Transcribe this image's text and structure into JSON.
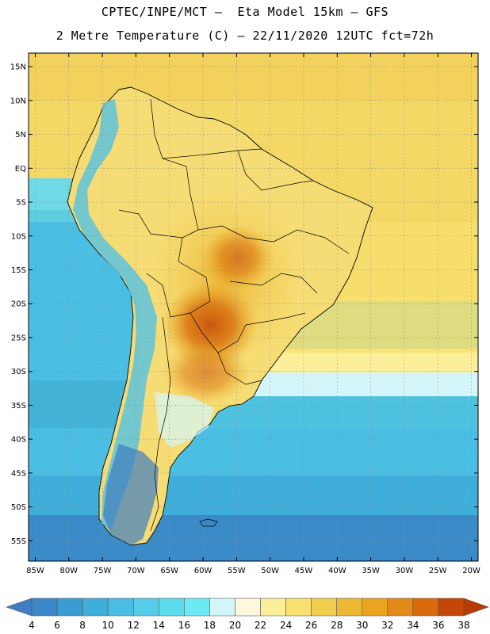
{
  "header": {
    "line1": "CPTEC/INPE/MCT –  Eta Model 15km – GFS",
    "line2": "2 Metre Temperature (C) – 22/11/2020 12UTC fct=72h"
  },
  "map": {
    "lon_range": [
      -86,
      -19
    ],
    "lat_range": [
      -58,
      17
    ],
    "lat_labels": [
      "15N",
      "10N",
      "5N",
      "EQ",
      "5S",
      "10S",
      "15S",
      "20S",
      "25S",
      "30S",
      "35S",
      "40S",
      "45S",
      "50S",
      "55S"
    ],
    "lon_labels": [
      "85W",
      "80W",
      "75W",
      "70W",
      "65W",
      "60W",
      "55W",
      "50W",
      "45W",
      "40W",
      "35W",
      "30W",
      "25W",
      "20W"
    ]
  },
  "colorbar": {
    "labels": [
      "4",
      "6",
      "8",
      "10",
      "12",
      "14",
      "16",
      "18",
      "20",
      "22",
      "24",
      "26",
      "28",
      "30",
      "32",
      "34",
      "36",
      "38"
    ],
    "colors": [
      "#3f7ec2",
      "#3a86c6",
      "#3a9cd0",
      "#40aedb",
      "#4bbfe3",
      "#55cde8",
      "#5ddcee",
      "#6be9f5",
      "#d4f6fb",
      "#fdf8dd",
      "#fbef9a",
      "#f8e170",
      "#f2ce4f",
      "#ecb935",
      "#e9a51e",
      "#e38a18",
      "#da6a0c",
      "#c54707",
      "#b83a04"
    ]
  }
}
